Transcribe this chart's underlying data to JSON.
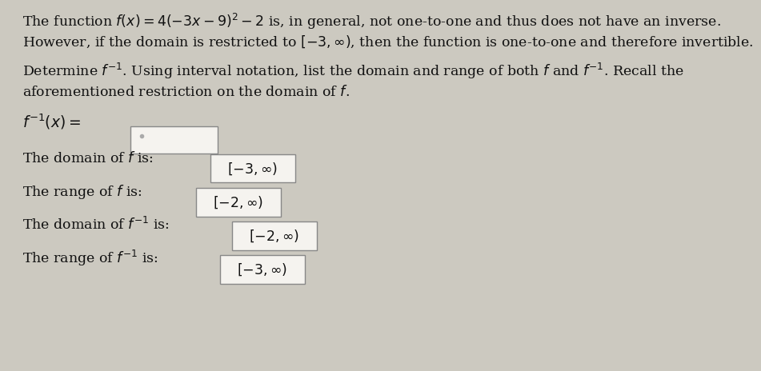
{
  "background_color": "#ccc9c0",
  "text_color": "#111111",
  "line1": "The function $f(x) = 4(-3x - 9)^2 - 2$ is, in general, not one-to-one and thus does not have an inverse.",
  "line2": "However, if the domain is restricted to $[-3, \\infty)$, then the function is one-to-one and therefore invertible.",
  "line3": "Determine $f^{-1}$. Using interval notation, list the domain and range of both $f$ and $f^{-1}$. Recall the",
  "line4": "aforementioned restriction on the domain of $f$.",
  "finv_label": "$f^{-1}(x) =$",
  "domain_f_label": "The domain of $f$ is:",
  "domain_f_value": "$[-3,\\infty)$",
  "range_f_label": "The range of $f$ is:",
  "range_f_value": "$[-2,\\infty)$",
  "domain_finv_label": "The domain of $f^{-1}$ is:",
  "domain_finv_value": "$[-2,\\infty)$",
  "range_finv_label": "The range of $f^{-1}$ is:",
  "range_finv_value": "$[-3,\\infty)$",
  "box_color": "#f5f3ef",
  "box_edge_color": "#888888",
  "font_size": 12.5
}
